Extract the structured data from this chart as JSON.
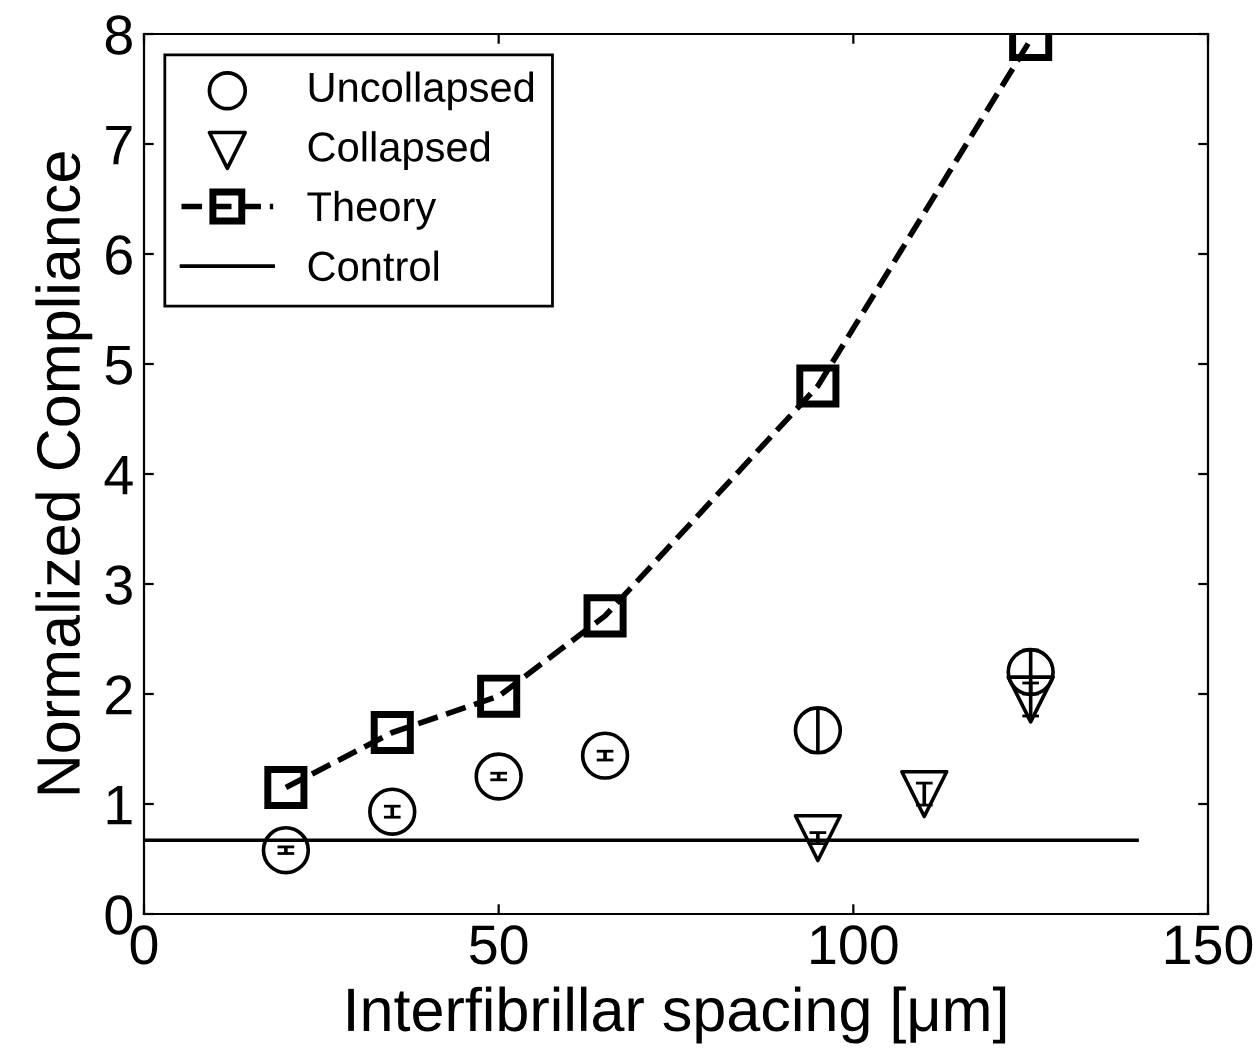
{
  "chart_data": {
    "type": "scatter",
    "xlabel": "Interfibrillar spacing [μm]",
    "ylabel": "Normalized Compliance",
    "xlim": [
      0,
      150
    ],
    "xticks": [
      0,
      50,
      100,
      150
    ],
    "ylim": [
      0,
      8
    ],
    "yticks": [
      0,
      1,
      2,
      3,
      4,
      5,
      6,
      7,
      8
    ],
    "grid": false,
    "legend": "top left",
    "series": [
      {
        "name": "Uncollapsed",
        "marker": "circle",
        "color": "#000000",
        "x": [
          20,
          35,
          50,
          65,
          95,
          125
        ],
        "values": [
          0.58,
          0.93,
          1.25,
          1.44,
          1.67,
          2.2
        ],
        "errors": [
          0.03,
          0.05,
          0.03,
          0.04,
          0.2,
          0.2
        ]
      },
      {
        "name": "Collapsed",
        "marker": "triangle",
        "color": "#000000",
        "x": [
          95,
          110,
          125
        ],
        "values": [
          0.69,
          1.09,
          1.95
        ],
        "errors": [
          0.05,
          0.1,
          0.15
        ]
      },
      {
        "name": "Theory",
        "type": "line",
        "marker": "square",
        "line_style": "dashed",
        "color": "#000000",
        "x": [
          20,
          35,
          50,
          65,
          95,
          125
        ],
        "values": [
          1.15,
          1.65,
          1.98,
          2.71,
          4.8,
          7.95
        ]
      },
      {
        "name": "Control",
        "type": "line",
        "marker": "none",
        "line_style": "solid",
        "color": "#000000",
        "x": [
          0,
          140
        ],
        "values": [
          0.67,
          0.67
        ]
      }
    ]
  }
}
